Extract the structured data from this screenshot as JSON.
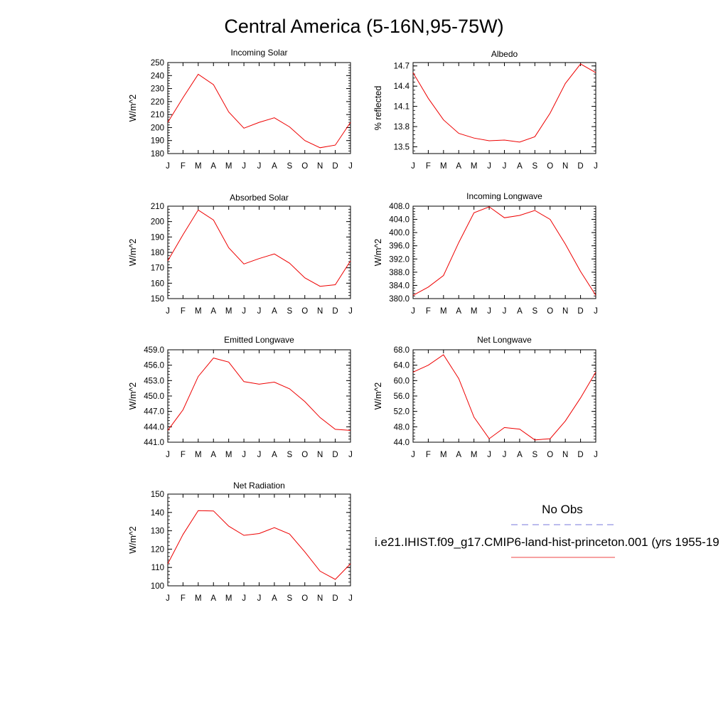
{
  "title": "Central America (5-16N,95-75W)",
  "chart_data": [
    {
      "type": "line",
      "title": "Incoming Solar",
      "ylabel": "W/m^2",
      "categories": [
        "J",
        "F",
        "M",
        "A",
        "M",
        "J",
        "J",
        "A",
        "S",
        "O",
        "N",
        "D",
        "J"
      ],
      "ylim": [
        180,
        250
      ],
      "yticks": [
        "180",
        "190",
        "200",
        "210",
        "220",
        "230",
        "240",
        "250"
      ],
      "series": [
        {
          "values": [
            204,
            223,
            241,
            233,
            212,
            199.5,
            204,
            207.5,
            200.5,
            190,
            184.5,
            186.5,
            204
          ]
        }
      ]
    },
    {
      "type": "line",
      "title": "Albedo",
      "ylabel": "% reflected",
      "categories": [
        "J",
        "F",
        "M",
        "A",
        "M",
        "J",
        "J",
        "A",
        "S",
        "O",
        "N",
        "D",
        "J"
      ],
      "ylim": [
        13.4,
        14.75
      ],
      "yticks": [
        "13.5",
        "13.8",
        "14.1",
        "14.4",
        "14.7"
      ],
      "series": [
        {
          "values": [
            14.6,
            14.22,
            13.9,
            13.7,
            13.63,
            13.59,
            13.6,
            13.57,
            13.65,
            14.0,
            14.44,
            14.73,
            14.6
          ]
        }
      ]
    },
    {
      "type": "line",
      "title": "Absorbed Solar",
      "ylabel": "W/m^2",
      "categories": [
        "J",
        "F",
        "M",
        "A",
        "M",
        "J",
        "J",
        "A",
        "S",
        "O",
        "N",
        "D",
        "J"
      ],
      "ylim": [
        150,
        210
      ],
      "yticks": [
        "150",
        "160",
        "170",
        "180",
        "190",
        "200",
        "210"
      ],
      "series": [
        {
          "values": [
            174.5,
            191.5,
            207.5,
            201,
            183,
            172.5,
            176,
            179,
            173,
            163.5,
            158,
            159,
            174.5
          ]
        }
      ]
    },
    {
      "type": "line",
      "title": "Incoming Longwave",
      "ylabel": "W/m^2",
      "categories": [
        "J",
        "F",
        "M",
        "A",
        "M",
        "J",
        "J",
        "A",
        "S",
        "O",
        "N",
        "D",
        "J"
      ],
      "ylim": [
        380,
        408
      ],
      "yticks": [
        "380.0",
        "384.0",
        "388.0",
        "392.0",
        "396.0",
        "400.0",
        "404.0",
        "408.0"
      ],
      "series": [
        {
          "values": [
            381,
            383.5,
            387,
            397,
            406,
            407.8,
            404.5,
            405.2,
            406.7,
            404,
            396.5,
            388.2,
            381
          ]
        }
      ]
    },
    {
      "type": "line",
      "title": "Emitted Longwave",
      "ylabel": "W/m^2",
      "categories": [
        "J",
        "F",
        "M",
        "A",
        "M",
        "J",
        "J",
        "A",
        "S",
        "O",
        "N",
        "D",
        "J"
      ],
      "ylim": [
        441,
        459
      ],
      "yticks": [
        "441.0",
        "444.0",
        "447.0",
        "450.0",
        "453.0",
        "456.0",
        "459.0"
      ],
      "series": [
        {
          "values": [
            443.3,
            447.3,
            453.8,
            457.4,
            456.6,
            452.8,
            452.3,
            452.7,
            451.4,
            448.9,
            445.8,
            443.5,
            443.3
          ]
        }
      ]
    },
    {
      "type": "line",
      "title": "Net Longwave",
      "ylabel": "W/m^2",
      "categories": [
        "J",
        "F",
        "M",
        "A",
        "M",
        "J",
        "J",
        "A",
        "S",
        "O",
        "N",
        "D",
        "J"
      ],
      "ylim": [
        44,
        68
      ],
      "yticks": [
        "44.0",
        "48.0",
        "52.0",
        "56.0",
        "60.0",
        "64.0",
        "68.0"
      ],
      "series": [
        {
          "values": [
            62.2,
            64.0,
            66.7,
            60.5,
            50.5,
            44.9,
            47.8,
            47.4,
            44.6,
            44.9,
            49.5,
            55.5,
            62.2
          ]
        }
      ]
    },
    {
      "type": "line",
      "title": "Net Radiation",
      "ylabel": "W/m^2",
      "categories": [
        "J",
        "F",
        "M",
        "A",
        "M",
        "J",
        "J",
        "A",
        "S",
        "O",
        "N",
        "D",
        "J"
      ],
      "ylim": [
        100,
        150
      ],
      "yticks": [
        "100",
        "110",
        "120",
        "130",
        "140",
        "150"
      ],
      "series": [
        {
          "values": [
            112,
            128,
            141,
            140.8,
            132.5,
            127.5,
            128.5,
            131.7,
            128.2,
            118.5,
            108,
            103.5,
            112
          ]
        }
      ]
    }
  ],
  "legend": {
    "items": [
      {
        "label": "No Obs",
        "color": "#7777dd",
        "dash": true
      },
      {
        "label": "i.e21.IHIST.f09_g17.CMIP6-land-hist-princeton.001 (yrs 1955-19",
        "color": "#ee4444",
        "dash": false
      }
    ]
  },
  "colors": {
    "line": "#ee0000",
    "axis": "#000000"
  }
}
